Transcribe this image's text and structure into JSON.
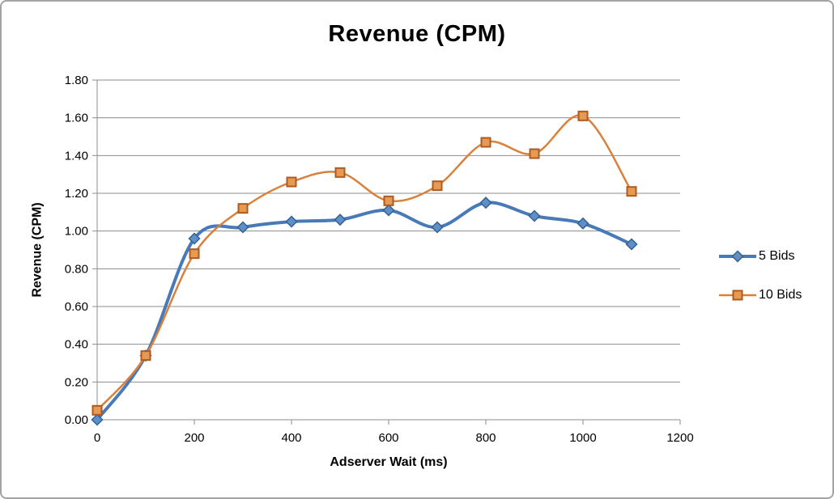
{
  "chart_data": {
    "type": "line",
    "title": "Revenue (CPM)",
    "xlabel": "Adserver Wait (ms)",
    "ylabel": "Revenue (CPM)",
    "xlim": [
      0,
      1200
    ],
    "ylim": [
      0,
      1.8
    ],
    "x_ticks": [
      0,
      200,
      400,
      600,
      800,
      1000,
      1200
    ],
    "y_ticks": [
      0.0,
      0.2,
      0.4,
      0.6,
      0.8,
      1.0,
      1.2,
      1.4,
      1.6,
      1.8
    ],
    "y_tick_decimals": 2,
    "grid": "horizontal",
    "legend_position": "right",
    "x": [
      0,
      100,
      200,
      300,
      400,
      500,
      600,
      700,
      800,
      900,
      1000,
      1100
    ],
    "series": [
      {
        "name": "5 Bids",
        "marker": "diamond",
        "line_color": "#4879B8",
        "line_width": 4,
        "marker_fill": "#5E8FC9",
        "marker_stroke": "#34618F",
        "values": [
          0.0,
          0.34,
          0.96,
          1.02,
          1.05,
          1.06,
          1.11,
          1.02,
          1.15,
          1.08,
          1.04,
          0.93
        ]
      },
      {
        "name": "10 Bids",
        "marker": "square",
        "line_color": "#D9813B",
        "line_width": 2.5,
        "marker_fill": "#E79A51",
        "marker_stroke": "#AE5A21",
        "values": [
          0.05,
          0.34,
          0.88,
          1.12,
          1.26,
          1.31,
          1.16,
          1.24,
          1.47,
          1.41,
          1.61,
          1.21
        ]
      }
    ],
    "colors": {
      "grid": "#8c8c8c",
      "axis": "#8c8c8c",
      "text": "#000000",
      "frame_border": "#a3a3a3"
    }
  }
}
